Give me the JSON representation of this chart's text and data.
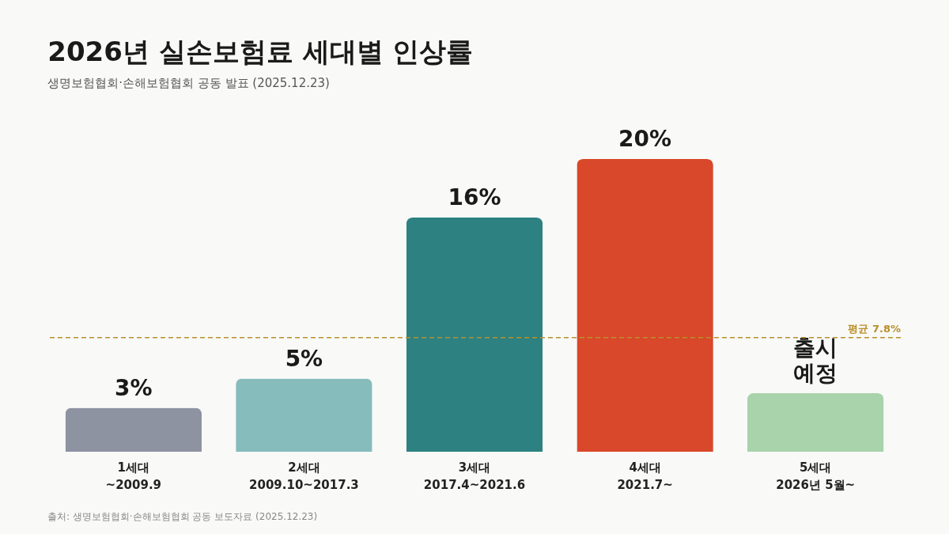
{
  "chart_data": {
    "type": "bar",
    "title": "2026년 실손보험료 세대별 인상률",
    "subtitle": "생명보험협회·손해보험협회 공동 발표 (2025.12.23)",
    "categories": [
      "1세대\n~2009.9",
      "2세대\n2009.10~2017.3",
      "3세대\n2017.4~2021.6",
      "4세대\n2021.7~",
      "5세대\n2026년 5월~"
    ],
    "values": [
      3,
      5,
      16,
      20,
      4
    ],
    "colors": [
      "#8e93a2",
      "#86bcbb",
      "#2d8181",
      "#d9482a",
      "#a9d3ab"
    ],
    "value_labels": [
      "3%",
      "5%",
      "16%",
      "20%",
      "출시\n예정"
    ],
    "ref_lines": [
      {
        "axis": "y",
        "value": 7.8,
        "label": "평균 7.8%",
        "color": "#b8902a",
        "line_style": "dashed"
      }
    ],
    "annotations": [
      "출처: 생명보험협회·손해보험협회 공동 보도자료 (2025.12.23)"
    ]
  }
}
